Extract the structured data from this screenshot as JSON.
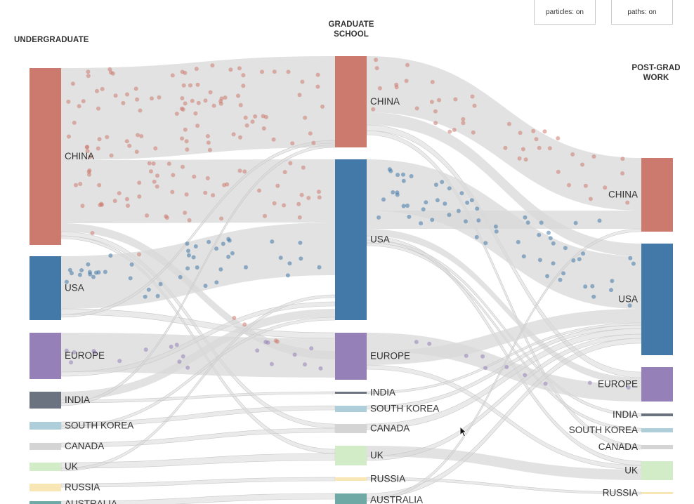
{
  "controls": {
    "particles_label": "particles: on",
    "paths_label": "paths: on"
  },
  "columns": {
    "undergrad": "UNDERGRADUATE",
    "grad_line1": "GRADUATE",
    "grad_line2": "SCHOOL",
    "postgrad_line1": "POST-GRAD",
    "postgrad_line2": "WORK"
  },
  "colors": {
    "CHINA": "#cc7a6e",
    "USA": "#4279a8",
    "EUROPE": "#9680b8",
    "INDIA": "#6b7280",
    "SOUTH KOREA": "#aecfd9",
    "CANADA": "#d4d4d4",
    "UK": "#d3ecc8",
    "RUSSIA": "#f8e6b4",
    "AUSTRALIA": "#6fa9a6",
    "link": "#d8d8d8"
  },
  "chart_data": {
    "type": "sankey",
    "stages": [
      "UNDERGRADUATE",
      "GRADUATE SCHOOL",
      "POST-GRAD WORK"
    ],
    "nodes": {
      "undergrad": [
        "CHINA",
        "USA",
        "EUROPE",
        "INDIA",
        "SOUTH KOREA",
        "CANADA",
        "UK",
        "RUSSIA",
        "AUSTRALIA"
      ],
      "grad": [
        "CHINA",
        "USA",
        "EUROPE",
        "INDIA",
        "SOUTH KOREA",
        "CANADA",
        "UK",
        "RUSSIA",
        "AUSTRALIA"
      ],
      "postgrad": [
        "CHINA",
        "USA",
        "EUROPE",
        "INDIA",
        "SOUTH KOREA",
        "CANADA",
        "UK",
        "RUSSIA"
      ]
    },
    "visible_node_labels": {
      "undergrad": [
        "CHINA",
        "USA",
        "EUROPE",
        "INDIA",
        "SOUTH KOREA",
        "CANADA",
        "UK",
        "RUSSIA",
        "AUSTRALIA"
      ],
      "grad": [
        "CHINA",
        "USA",
        "EUROPE",
        "INDIA",
        "SOUTH KOREA",
        "CANADA",
        "UK",
        "RUSSIA",
        "AUSTRALIA"
      ],
      "postgrad": [
        "CHINA",
        "USA",
        "EUROPE",
        "INDIA",
        "SOUTH KOREA",
        "CANADA",
        "UK",
        "RUSSIA"
      ]
    }
  }
}
